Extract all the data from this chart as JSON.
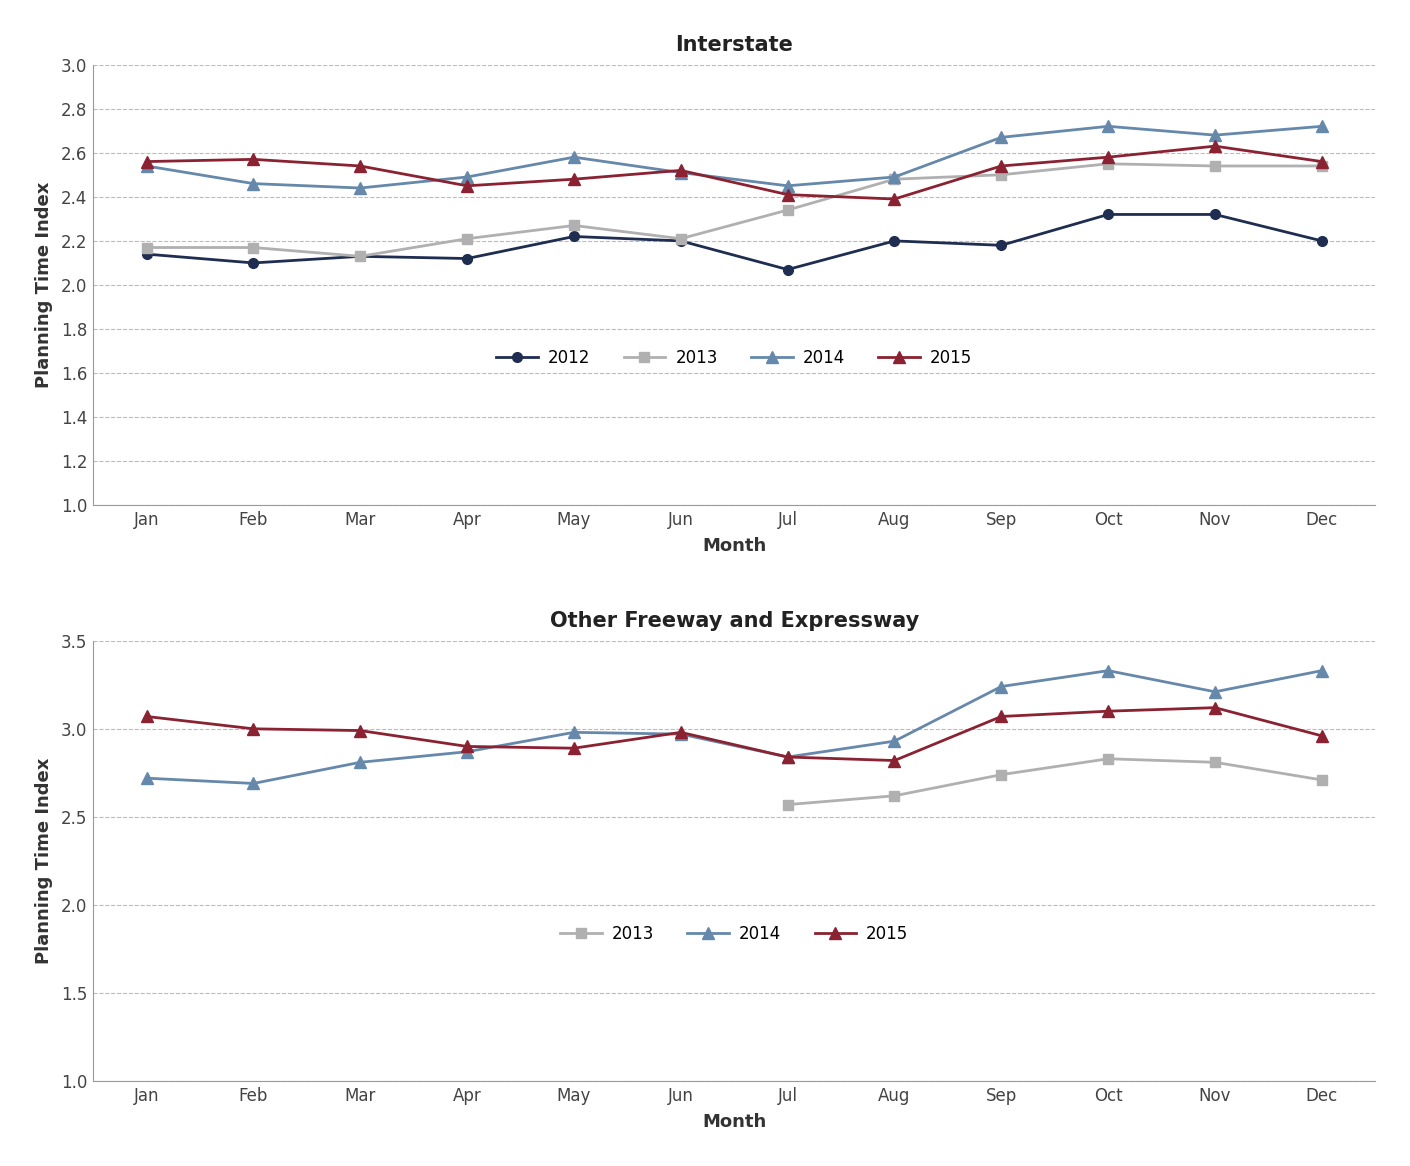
{
  "months": [
    "Jan",
    "Feb",
    "Mar",
    "Apr",
    "May",
    "Jun",
    "Jul",
    "Aug",
    "Sep",
    "Oct",
    "Nov",
    "Dec"
  ],
  "interstate": {
    "2012": [
      2.14,
      2.1,
      2.13,
      2.12,
      2.22,
      2.2,
      2.07,
      2.2,
      2.18,
      2.32,
      2.32,
      2.2
    ],
    "2013": [
      2.17,
      2.17,
      2.13,
      2.21,
      2.27,
      2.21,
      2.34,
      2.48,
      2.5,
      2.55,
      2.54,
      2.54
    ],
    "2014": [
      2.54,
      2.46,
      2.44,
      2.49,
      2.58,
      2.51,
      2.45,
      2.49,
      2.67,
      2.72,
      2.68,
      2.72
    ],
    "2015": [
      2.56,
      2.57,
      2.54,
      2.45,
      2.48,
      2.52,
      2.41,
      2.39,
      2.54,
      2.58,
      2.63,
      2.56
    ]
  },
  "freeway": {
    "2013": [
      null,
      null,
      null,
      null,
      null,
      null,
      2.57,
      2.62,
      2.74,
      2.83,
      2.81,
      2.71
    ],
    "2014": [
      2.72,
      2.69,
      2.81,
      2.87,
      2.98,
      2.97,
      2.84,
      2.93,
      3.24,
      3.33,
      3.21,
      3.33
    ],
    "2015": [
      3.07,
      3.0,
      2.99,
      2.9,
      2.89,
      2.98,
      2.84,
      2.82,
      3.07,
      3.1,
      3.12,
      2.96
    ]
  },
  "interstate_colors": {
    "2012": "#1e2d50",
    "2013": "#b0b0b0",
    "2014": "#6688aa",
    "2015": "#8b2232"
  },
  "freeway_colors": {
    "2013": "#b0b0b0",
    "2014": "#6688aa",
    "2015": "#8b2232"
  },
  "title1": "Interstate",
  "title2": "Other Freeway and Expressway",
  "ylabel": "Planning Time Index",
  "xlabel": "Month",
  "ylim1": [
    1.0,
    3.0
  ],
  "ylim2": [
    1.0,
    3.5
  ],
  "yticks1": [
    1.0,
    1.2,
    1.4,
    1.6,
    1.8,
    2.0,
    2.2,
    2.4,
    2.6,
    2.8,
    3.0
  ],
  "yticks2": [
    1.0,
    1.5,
    2.0,
    2.5,
    3.0,
    3.5
  ],
  "background_color": "#ffffff",
  "grid_color": "#bbbbbb",
  "line_width": 2.0
}
